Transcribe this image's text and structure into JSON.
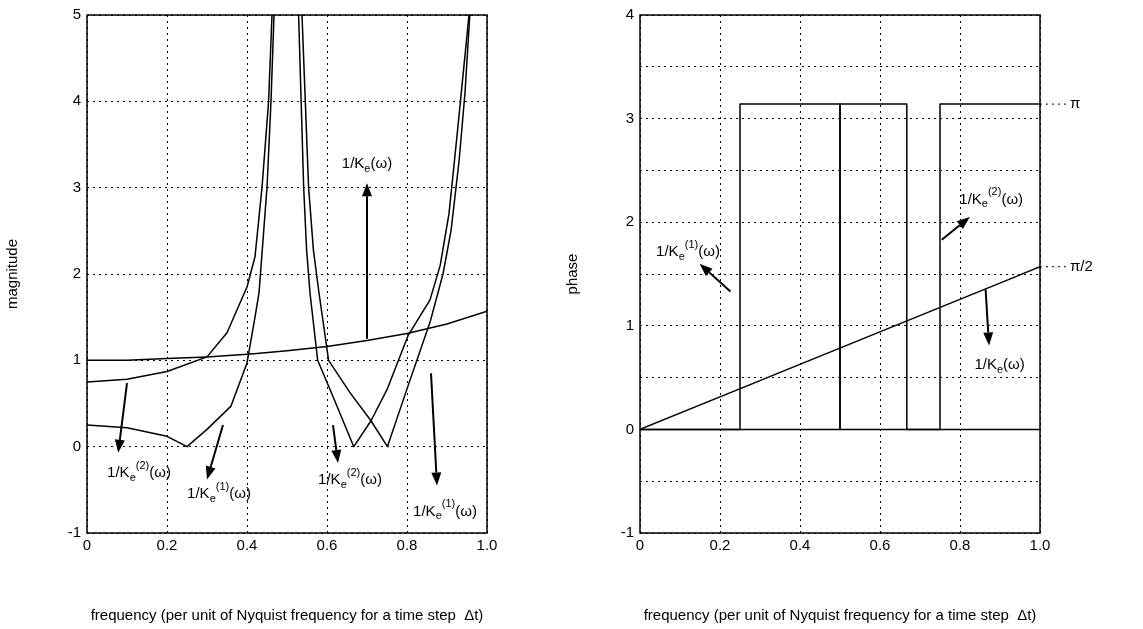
{
  "chart_data": [
    {
      "type": "line",
      "xlabel": "frequency (per unit of Nyquist frequency for a time step  Δt)",
      "ylabel": "magnitude",
      "xlim": [
        0,
        1
      ],
      "ylim": [
        -1,
        5
      ],
      "xticks": [
        0,
        0.2,
        0.4,
        0.6,
        0.8,
        {
          "value": 1,
          "label": "1.0"
        }
      ],
      "yticks": [
        -1,
        0,
        1,
        2,
        3,
        4,
        5
      ],
      "grid": true,
      "marker": "none",
      "series": [
        {
          "color": "#000000",
          "x": [
            0,
            0.1,
            0.2,
            0.3,
            0.4,
            0.5,
            0.6,
            0.7,
            0.8,
            0.9,
            1.0
          ],
          "values": [
            1.0,
            1.0,
            1.02,
            1.04,
            1.07,
            1.11,
            1.16,
            1.23,
            1.31,
            1.42,
            1.57
          ]
        },
        {
          "color": "#000000",
          "x": [
            0,
            0.1,
            0.2,
            0.25,
            0.3,
            0.36,
            0.4,
            0.42,
            0.43,
            0.45,
            0.46,
            0.4675,
            0.5,
            0.529,
            0.5417,
            0.549,
            0.5575,
            0.5767,
            0.6167,
            0.667,
            0.71,
            0.75,
            0.803,
            0.8575,
            0.883,
            0.905,
            0.925,
            0.94,
            0.955
          ],
          "values": [
            0.25,
            0.22,
            0.12,
            0,
            0.2,
            0.47,
            0.97,
            1.5,
            1.78,
            3.0,
            4.0,
            5,
            null,
            5,
            3.0,
            2.28,
            1.78,
            1.0,
            0.56,
            0,
            0.3,
            0.66,
            1.29,
            1.7,
            2.1,
            2.7,
            3.6,
            4.3,
            5
          ]
        },
        {
          "color": "#000000",
          "x": [
            0,
            0.1,
            0.2,
            0.3,
            0.35,
            0.4,
            0.42,
            0.4375,
            0.454,
            0.4625,
            0.5,
            0.5375,
            0.554,
            0.566,
            0.58,
            0.604,
            0.6583,
            0.71,
            0.751,
            0.803,
            0.8575,
            0.89,
            0.91,
            0.93,
            0.945,
            0.957
          ],
          "values": [
            0.75,
            0.78,
            0.87,
            1.04,
            1.32,
            1.85,
            2.2,
            3.0,
            4.0,
            5,
            null,
            5,
            3.0,
            2.28,
            1.78,
            1.0,
            0.62,
            0.3,
            0,
            0.71,
            1.44,
            2.0,
            2.5,
            3.3,
            4.1,
            5
          ]
        }
      ],
      "annotations": [
        "1/K$_{e}$(ω)",
        "1/K$_{e}$$^{(2)}$(ω)",
        "1/K$_{e}$$^{(1)}$(ω)",
        "1/K$_{e}$$^{(2)}$(ω)",
        "1/K$_{e}$$^{(1)}$(ω)"
      ]
    },
    {
      "type": "line",
      "xlabel": "frequency (per unit of Nyquist frequency for a time step  Δt)",
      "ylabel": "phase",
      "xlim": [
        0,
        1
      ],
      "ylim": [
        -1,
        4
      ],
      "xticks": [
        0,
        0.2,
        0.4,
        0.6,
        0.8,
        {
          "value": 1,
          "label": "1.0"
        }
      ],
      "yticks": [
        -1,
        {
          "value": -0.5,
          "label": null
        },
        0,
        {
          "value": 0.5,
          "label": null
        },
        1,
        {
          "value": 1.5,
          "label": null
        },
        2,
        {
          "value": 2.5,
          "label": null
        },
        3,
        {
          "value": 3.5,
          "label": null
        },
        4
      ],
      "grid": true,
      "marker": "none",
      "series": [
        {
          "color": "#000000",
          "x": [
            0,
            1
          ],
          "values": [
            0,
            1.57
          ]
        },
        {
          "color": "#000000",
          "x": [
            0,
            0.25,
            0.25,
            0.5,
            0.5,
            0.75,
            0.75,
            1.0
          ],
          "values": [
            0,
            0,
            3.14,
            3.14,
            0,
            0,
            3.14,
            3.14
          ]
        },
        {
          "color": "#000000",
          "x": [
            0,
            0.5,
            0.5,
            0.667,
            0.667,
            1.0
          ],
          "values": [
            0,
            0,
            3.14,
            3.14,
            0,
            0
          ]
        }
      ],
      "annotations": [
        "1/K$_{e}$$^{(1)}$(ω)",
        "1/K$_{e}$$^{(2)}$(ω)",
        "1/K$_{e}$(ω)",
        {
          "text": "π",
          "x": 1,
          "y": 3.14
        },
        {
          "text": "π/2",
          "x": 1,
          "y": 1.57
        }
      ]
    }
  ]
}
